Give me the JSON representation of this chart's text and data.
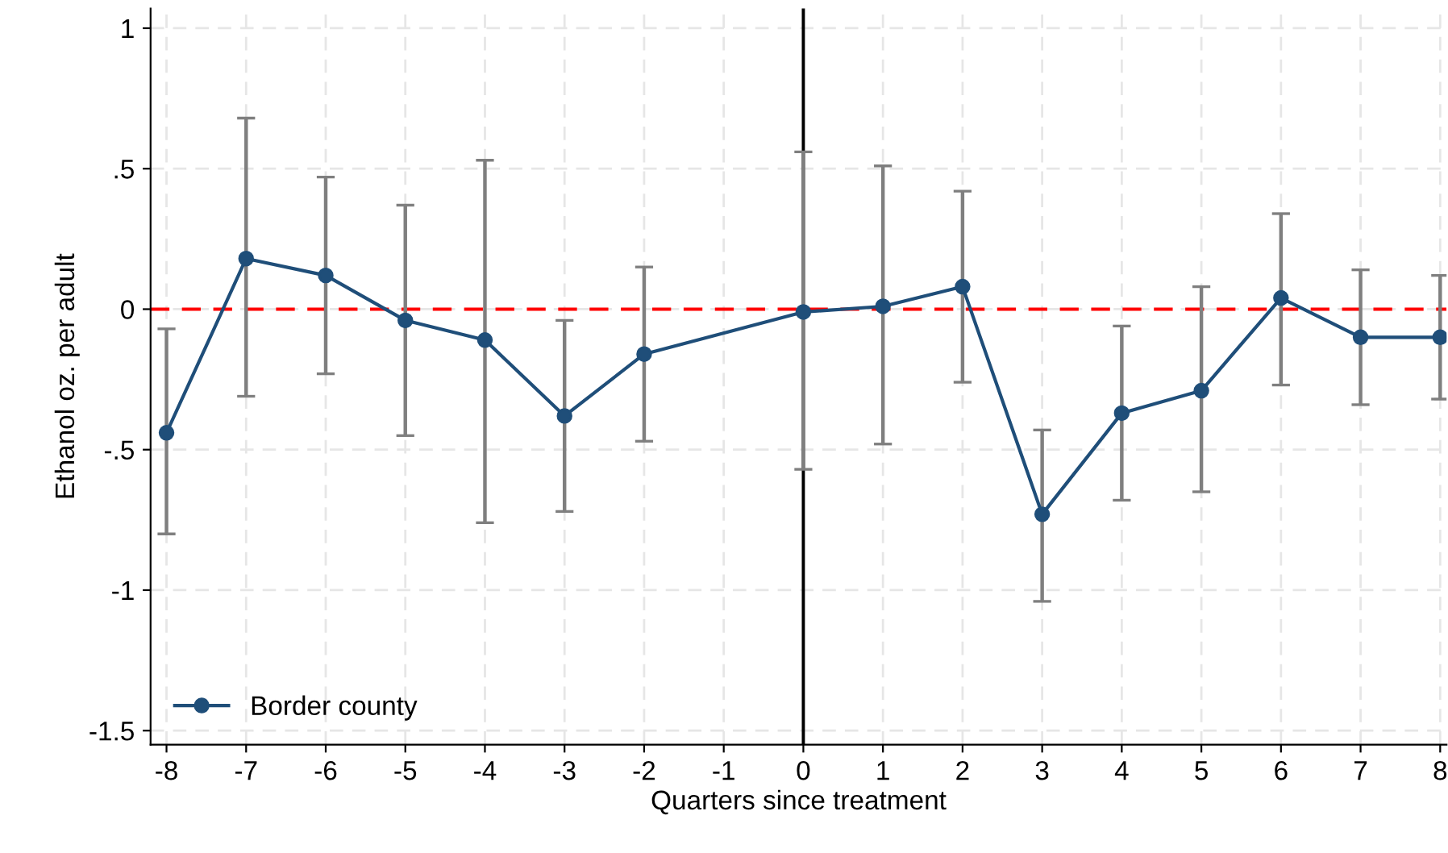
{
  "chart_data": {
    "type": "line",
    "xlabel": "Quarters since treatment",
    "ylabel": "Ethanol oz. per adult",
    "x": [
      -8,
      -7,
      -6,
      -5,
      -4,
      -3,
      -2,
      0,
      1,
      2,
      3,
      4,
      5,
      6,
      7,
      8
    ],
    "series": [
      {
        "name": "Border county",
        "color": "#1f4e79",
        "values": [
          -0.44,
          0.18,
          0.12,
          -0.04,
          -0.11,
          -0.38,
          -0.16,
          -0.01,
          0.01,
          0.08,
          -0.73,
          -0.37,
          -0.29,
          0.04,
          -0.1,
          -0.1
        ],
        "errors": [
          [
            -0.8,
            -0.07
          ],
          [
            -0.31,
            0.68
          ],
          [
            -0.23,
            0.47
          ],
          [
            -0.45,
            0.37
          ],
          [
            -0.76,
            0.53
          ],
          [
            -0.72,
            -0.04
          ],
          [
            -0.47,
            0.15
          ],
          [
            -0.57,
            0.56
          ],
          [
            -0.48,
            0.51
          ],
          [
            -0.26,
            0.42
          ],
          [
            -1.04,
            -0.43
          ],
          [
            -0.68,
            -0.06
          ],
          [
            -0.65,
            0.08
          ],
          [
            -0.27,
            0.34
          ],
          [
            -0.34,
            0.14
          ],
          [
            -0.32,
            0.12
          ]
        ]
      }
    ],
    "xlim": [
      -8.2,
      8.08
    ],
    "xticks": [
      -8,
      -7,
      -6,
      -5,
      -4,
      -3,
      -2,
      -1,
      0,
      1,
      2,
      3,
      4,
      5,
      6,
      7,
      8
    ],
    "ylim": [
      -1.55,
      1.07
    ],
    "yticks": [
      {
        "value": -1.5,
        "label": "-1.5"
      },
      {
        "value": -1,
        "label": "-1"
      },
      {
        "value": -0.5,
        "label": "-.5"
      },
      {
        "value": 0,
        "label": "0"
      },
      {
        "value": 0.5,
        "label": ".5"
      },
      {
        "value": 1,
        "label": "1"
      }
    ],
    "ref_lines": [
      {
        "axis": "y",
        "value": 0,
        "color": "#ff0000",
        "line_style": "dashed"
      },
      {
        "axis": "x",
        "value": 0,
        "color": "#000000",
        "line_style": "solid"
      }
    ],
    "grid": true,
    "legend": "lower left",
    "marker": "circle",
    "line_style": "solid"
  }
}
